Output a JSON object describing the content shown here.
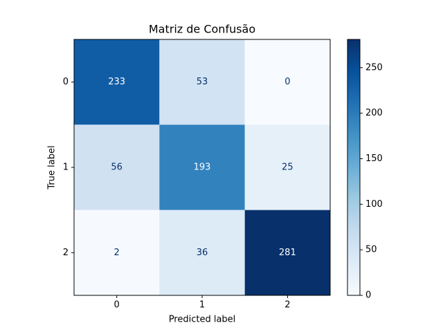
{
  "chart_data": {
    "type": "heatmap",
    "title": "Matriz de Confusão",
    "x_label": "Predicted label",
    "y_label": "True label",
    "x_categories": [
      "0",
      "1",
      "2"
    ],
    "y_categories": [
      "0",
      "1",
      "2"
    ],
    "values": [
      [
        233,
        53,
        0
      ],
      [
        56,
        193,
        25
      ],
      [
        2,
        36,
        281
      ]
    ],
    "colormap": "Blues",
    "zlim": [
      0,
      281
    ],
    "zticks": [
      0,
      50,
      100,
      150,
      200,
      250
    ]
  }
}
